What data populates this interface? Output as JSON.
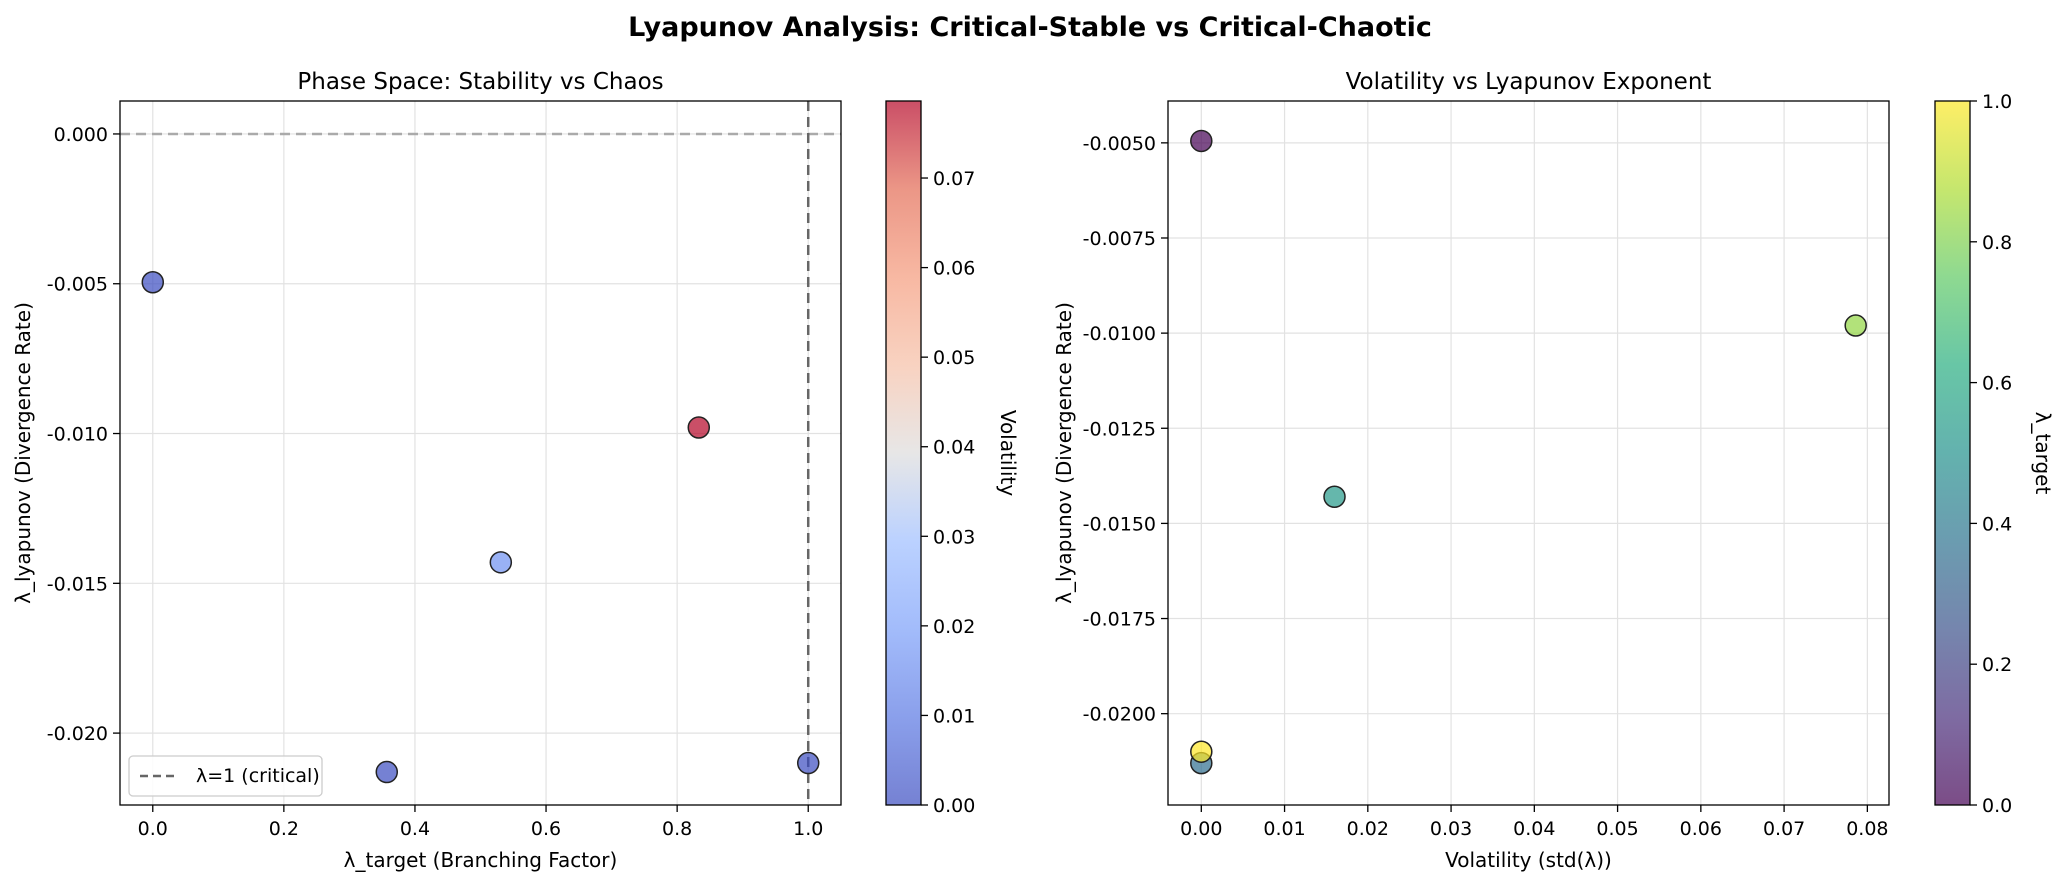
{
  "figure": {
    "suptitle": "Lyapunov Analysis: Critical-Stable vs Critical-Chaotic"
  },
  "chart_data": [
    {
      "type": "scatter",
      "title": "Phase Space: Stability vs Chaos",
      "xlabel": "λ_target (Branching Factor)",
      "ylabel": "λ_lyapunov (Divergence Rate)",
      "xlim": [
        -0.05,
        1.05
      ],
      "ylim": [
        -0.0224,
        0.0011
      ],
      "xticks": [
        0.0,
        0.2,
        0.4,
        0.6,
        0.8,
        1.0
      ],
      "xtick_labels": [
        "0.0",
        "0.2",
        "0.4",
        "0.6",
        "0.8",
        "1.0"
      ],
      "yticks": [
        0.0,
        -0.005,
        -0.01,
        -0.015,
        -0.02
      ],
      "ytick_labels": [
        "0.000",
        "-0.005",
        "-0.010",
        "-0.015",
        "-0.020"
      ],
      "grid": true,
      "color_by": "volatility",
      "points": [
        {
          "x": 0.0,
          "y": -0.00495,
          "volatility": 0.0,
          "lambda_target": 0.0
        },
        {
          "x": 0.357,
          "y": -0.0213,
          "volatility": 0.0,
          "lambda_target": 0.357
        },
        {
          "x": 0.531,
          "y": -0.0143,
          "volatility": 0.016,
          "lambda_target": 0.531
        },
        {
          "x": 0.833,
          "y": -0.0098,
          "volatility": 0.0786,
          "lambda_target": 0.833
        },
        {
          "x": 1.0,
          "y": -0.021,
          "volatility": 0.0,
          "lambda_target": 1.0
        }
      ],
      "reference_lines": [
        {
          "orientation": "horizontal",
          "value": 0.0,
          "style": "dashed",
          "color": "#aaaaaa"
        },
        {
          "orientation": "vertical",
          "value": 1.0,
          "style": "dashed",
          "color": "#666666",
          "label": "λ=1 (critical)"
        }
      ],
      "legend": {
        "position": "lower-left",
        "entries": [
          "λ=1 (critical)"
        ]
      },
      "colorbar": {
        "label": "Volatility",
        "colormap": "coolwarm",
        "range": [
          0.0,
          0.0786
        ],
        "ticks": [
          0.0,
          0.01,
          0.02,
          0.03,
          0.04,
          0.05,
          0.06,
          0.07
        ],
        "tick_labels": [
          "0.00",
          "0.01",
          "0.02",
          "0.03",
          "0.04",
          "0.05",
          "0.06",
          "0.07"
        ]
      }
    },
    {
      "type": "scatter",
      "title": "Volatility vs Lyapunov Exponent",
      "xlabel": "Volatility (std(λ))",
      "ylabel": "λ_lyapunov (Divergence Rate)",
      "xlim": [
        -0.004,
        0.0826
      ],
      "ylim": [
        -0.0224,
        -0.0039
      ],
      "xticks": [
        0.0,
        0.01,
        0.02,
        0.03,
        0.04,
        0.05,
        0.06,
        0.07,
        0.08
      ],
      "xtick_labels": [
        "0.00",
        "0.01",
        "0.02",
        "0.03",
        "0.04",
        "0.05",
        "0.06",
        "0.07",
        "0.08"
      ],
      "yticks": [
        -0.005,
        -0.0075,
        -0.01,
        -0.0125,
        -0.015,
        -0.0175,
        -0.02
      ],
      "ytick_labels": [
        "-0.0050",
        "-0.0075",
        "-0.0100",
        "-0.0125",
        "-0.0150",
        "-0.0175",
        "-0.0200"
      ],
      "grid": true,
      "color_by": "lambda_target",
      "points": [
        {
          "x": 0.0,
          "y": -0.00495,
          "lambda_target": 0.0
        },
        {
          "x": 0.0,
          "y": -0.0213,
          "lambda_target": 0.357
        },
        {
          "x": 0.016,
          "y": -0.0143,
          "lambda_target": 0.531
        },
        {
          "x": 0.0786,
          "y": -0.0098,
          "lambda_target": 0.833
        },
        {
          "x": 0.0,
          "y": -0.021,
          "lambda_target": 1.0
        }
      ],
      "colorbar": {
        "label": "λ_target",
        "colormap": "viridis",
        "range": [
          0.0,
          1.0
        ],
        "ticks": [
          0.0,
          0.2,
          0.4,
          0.6,
          0.8,
          1.0
        ],
        "tick_labels": [
          "0.0",
          "0.2",
          "0.4",
          "0.6",
          "0.8",
          "1.0"
        ]
      }
    }
  ]
}
